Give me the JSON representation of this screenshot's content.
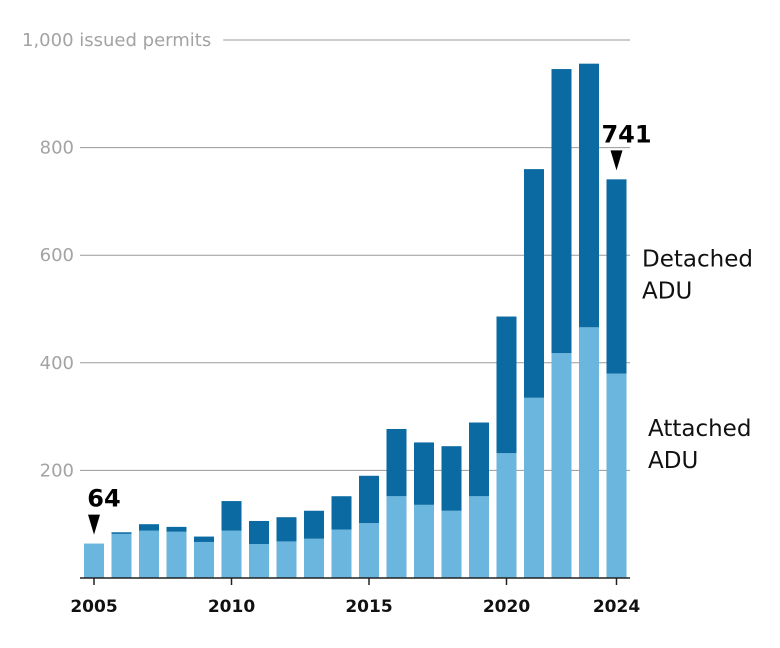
{
  "chart_data": {
    "type": "bar",
    "stacked": true,
    "x": [
      2005,
      2006,
      2007,
      2008,
      2009,
      2010,
      2011,
      2012,
      2013,
      2014,
      2015,
      2016,
      2017,
      2018,
      2019,
      2020,
      2021,
      2022,
      2023,
      2024
    ],
    "x_tick_labels": [
      "2005",
      "2010",
      "2015",
      "2020",
      "2024"
    ],
    "y_ticks": [
      200,
      400,
      600,
      800,
      1000
    ],
    "y_tick_labels": [
      "200",
      "400",
      "600",
      "800",
      "1,000 issued permits"
    ],
    "ylim": [
      0,
      1000
    ],
    "series": [
      {
        "name": "Attached ADU",
        "label_lines": [
          "Attached",
          "ADU"
        ],
        "color": "#6bb6de",
        "values": [
          64,
          82,
          88,
          86,
          67,
          88,
          63,
          68,
          73,
          90,
          102,
          152,
          136,
          125,
          152,
          232,
          335,
          418,
          466,
          380
        ]
      },
      {
        "name": "Detached ADU",
        "label_lines": [
          "Detached",
          "ADU"
        ],
        "color": "#0a6aa1",
        "values": [
          0,
          3,
          12,
          9,
          10,
          55,
          43,
          45,
          52,
          62,
          88,
          125,
          116,
          120,
          137,
          254,
          425,
          528,
          490,
          361
        ]
      }
    ],
    "annotations": [
      {
        "year": 2005,
        "text": "64"
      },
      {
        "year": 2024,
        "text": "741"
      }
    ],
    "grid": "horizontal",
    "legend": "inline-right"
  }
}
